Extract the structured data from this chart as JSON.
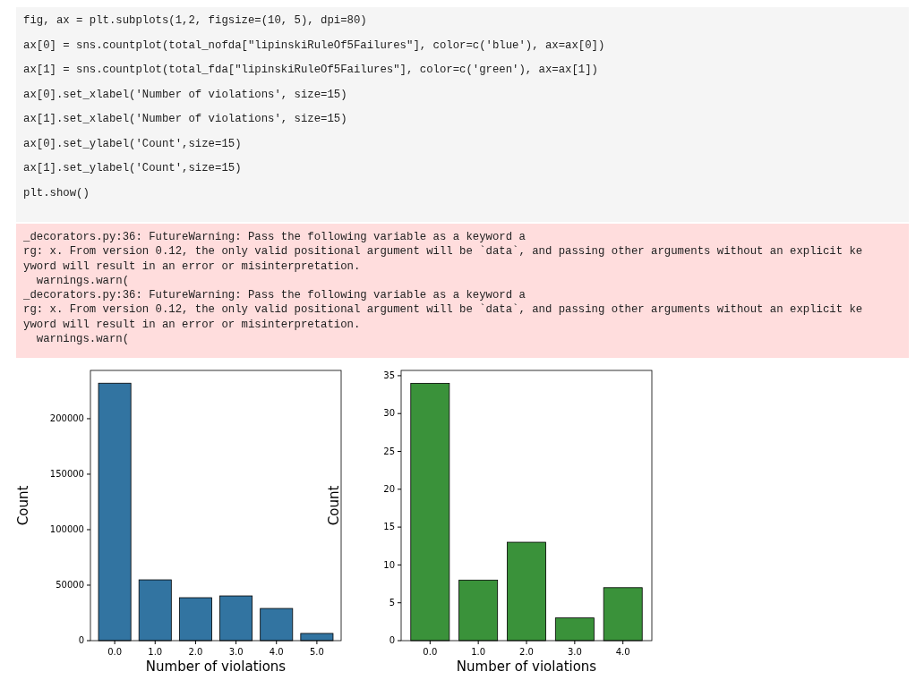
{
  "chart_data": [
    {
      "type": "other",
      "annotations": [
        "fig, ax = plt.subplots(1,2, figsize=(10, 5), dpi=80)",
        "ax[0] = sns.countplot(total_nofda[\"lipinskiRuleOf5Failures\"], color=c('blue'), ax=ax[0])",
        "ax[1] = sns.countplot(total_fda[\"lipinskiRuleOf5Failures\"], color=c('green'), ax=ax[1])",
        "ax[0].set_xlabel('Number of violations', size=15)",
        "ax[1].set_xlabel('Number of violations', size=15)",
        "ax[0].set_ylabel('Count',size=15)",
        "ax[1].set_ylabel('Count',size=15)",
        "plt.show()"
      ]
    },
    {
      "type": "other",
      "annotations": [
        "_decorators.py:36: FutureWarning: Pass the following variable as a keyword a",
        "rg: x. From version 0.12, the only valid positional argument will be `data`, and passing other arguments without an explicit ke",
        "yword will result in an error or misinterpretation.",
        "  warnings.warn(",
        "_decorators.py:36: FutureWarning: Pass the following variable as a keyword a",
        "rg: x. From version 0.12, the only valid positional argument will be `data`, and passing other arguments without an explicit ke",
        "yword will result in an error or misinterpretation.",
        "  warnings.warn("
      ]
    },
    {
      "type": "bar",
      "categories": [
        "0.0",
        "1.0",
        "2.0",
        "3.0",
        "4.0",
        "5.0"
      ],
      "values": [
        232000,
        54800,
        38700,
        40300,
        29000,
        6500
      ],
      "color": "#3274a1",
      "xlabel": "Number of violations",
      "ylabel": "Count",
      "ylim": [
        0,
        243500
      ],
      "yticks": [
        0,
        50000,
        100000,
        150000,
        200000
      ]
    },
    {
      "type": "bar",
      "categories": [
        "0.0",
        "1.0",
        "2.0",
        "3.0",
        "4.0"
      ],
      "values": [
        34,
        8,
        13,
        3,
        7
      ],
      "color": "#3a923a",
      "xlabel": "Number of violations",
      "ylabel": "Count",
      "ylim": [
        0,
        35.7
      ],
      "yticks": [
        0,
        5,
        10,
        15,
        20,
        25,
        30,
        35
      ]
    }
  ]
}
